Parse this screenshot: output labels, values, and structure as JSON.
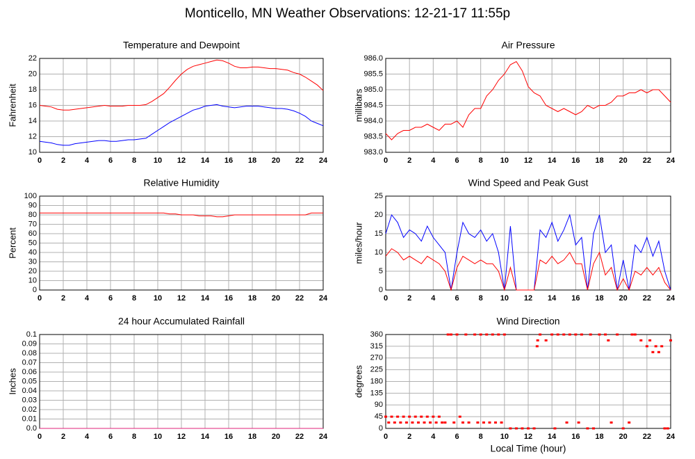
{
  "title": "Monticello, MN Weather Observations: 12-21-17 11:55p",
  "chart_data": [
    {
      "type": "line",
      "title": "Temperature and Dewpoint",
      "y_label": "Fahrenheit",
      "x": [
        0,
        0.5,
        1,
        1.5,
        2,
        2.5,
        3,
        3.5,
        4,
        4.5,
        5,
        5.5,
        6,
        6.5,
        7,
        7.5,
        8,
        8.5,
        9,
        9.5,
        10,
        10.5,
        11,
        11.5,
        12,
        12.5,
        13,
        13.5,
        14,
        14.5,
        15,
        15.5,
        16,
        16.5,
        17,
        17.5,
        18,
        18.5,
        19,
        19.5,
        20,
        20.5,
        21,
        21.5,
        22,
        22.5,
        23,
        23.5,
        24
      ],
      "series": [
        {
          "color": "#ff0000",
          "values": [
            16,
            15.9,
            15.8,
            15.5,
            15.4,
            15.4,
            15.5,
            15.6,
            15.7,
            15.8,
            15.9,
            16,
            15.9,
            15.9,
            15.9,
            16,
            16,
            16,
            16.1,
            16.5,
            17,
            17.5,
            18.3,
            19.2,
            20,
            20.6,
            21,
            21.2,
            21.4,
            21.6,
            21.8,
            21.7,
            21.4,
            21,
            20.8,
            20.8,
            20.9,
            20.9,
            20.8,
            20.7,
            20.7,
            20.6,
            20.5,
            20.2,
            20,
            19.6,
            19.1,
            18.6,
            17.9
          ]
        },
        {
          "color": "#0000ff",
          "values": [
            11.4,
            11.3,
            11.2,
            11,
            10.9,
            10.9,
            11.1,
            11.2,
            11.3,
            11.4,
            11.5,
            11.5,
            11.4,
            11.4,
            11.5,
            11.6,
            11.6,
            11.7,
            11.8,
            12.3,
            12.8,
            13.3,
            13.8,
            14.2,
            14.6,
            15,
            15.4,
            15.6,
            15.9,
            16,
            16.1,
            15.9,
            15.8,
            15.7,
            15.8,
            15.9,
            15.9,
            15.9,
            15.8,
            15.7,
            15.6,
            15.6,
            15.5,
            15.3,
            15,
            14.6,
            14,
            13.7,
            13.4
          ]
        }
      ],
      "xlim": [
        0,
        24
      ],
      "xticks": [
        0,
        2,
        4,
        6,
        8,
        10,
        12,
        14,
        16,
        18,
        20,
        22,
        24
      ],
      "ylim": [
        10,
        22
      ],
      "yticks": [
        10,
        12,
        14,
        16,
        18,
        20,
        22
      ],
      "grid": true
    },
    {
      "type": "line",
      "title": "Air Pressure",
      "y_label": "millibars",
      "x": [
        0,
        0.5,
        1,
        1.5,
        2,
        2.5,
        3,
        3.5,
        4,
        4.5,
        5,
        5.5,
        6,
        6.5,
        7,
        7.5,
        8,
        8.5,
        9,
        9.5,
        10,
        10.5,
        11,
        11.5,
        12,
        12.5,
        13,
        13.5,
        14,
        14.5,
        15,
        15.5,
        16,
        16.5,
        17,
        17.5,
        18,
        18.5,
        19,
        19.5,
        20,
        20.5,
        21,
        21.5,
        22,
        22.5,
        23,
        23.5,
        24
      ],
      "series": [
        {
          "color": "#ff0000",
          "values": [
            983.6,
            983.4,
            983.6,
            983.7,
            983.7,
            983.8,
            983.8,
            983.9,
            983.8,
            983.7,
            983.9,
            983.9,
            984,
            983.8,
            984.2,
            984.4,
            984.4,
            984.8,
            985,
            985.3,
            985.5,
            985.8,
            985.9,
            985.6,
            985.1,
            984.9,
            984.8,
            984.5,
            984.4,
            984.3,
            984.4,
            984.3,
            984.2,
            984.3,
            984.5,
            984.4,
            984.5,
            984.5,
            984.6,
            984.8,
            984.8,
            984.9,
            984.9,
            985,
            984.9,
            985,
            985,
            984.8,
            984.6
          ]
        }
      ],
      "xlim": [
        0,
        24
      ],
      "xticks": [
        0,
        2,
        4,
        6,
        8,
        10,
        12,
        14,
        16,
        18,
        20,
        22,
        24
      ],
      "ylim": [
        983,
        986
      ],
      "yticks": [
        {
          "value": 983,
          "label": "983.0"
        },
        983.5,
        {
          "value": 984,
          "label": "984.0"
        },
        984.5,
        {
          "value": 985,
          "label": "985.0"
        },
        985.5,
        {
          "value": 986,
          "label": "986.0"
        }
      ],
      "grid": true
    },
    {
      "type": "line",
      "title": "Relative Humidity",
      "y_label": "Percent",
      "x": [
        0,
        0.5,
        1,
        1.5,
        2,
        2.5,
        3,
        3.5,
        4,
        4.5,
        5,
        5.5,
        6,
        6.5,
        7,
        7.5,
        8,
        8.5,
        9,
        9.5,
        10,
        10.5,
        11,
        11.5,
        12,
        12.5,
        13,
        13.5,
        14,
        14.5,
        15,
        15.5,
        16,
        16.5,
        17,
        17.5,
        18,
        18.5,
        19,
        19.5,
        20,
        20.5,
        21,
        21.5,
        22,
        22.5,
        23,
        23.5,
        24
      ],
      "series": [
        {
          "color": "#ff0000",
          "values": [
            82,
            82,
            82,
            82,
            82,
            82,
            82,
            82,
            82,
            82,
            82,
            82,
            82,
            82,
            82,
            82,
            82,
            82,
            82,
            82,
            82,
            82,
            81,
            81,
            80,
            80,
            80,
            79,
            79,
            79,
            78,
            78,
            79,
            80,
            80,
            80,
            80,
            80,
            80,
            80,
            80,
            80,
            80,
            80,
            80,
            80,
            82,
            82,
            82
          ]
        }
      ],
      "xlim": [
        0,
        24
      ],
      "xticks": [
        0,
        2,
        4,
        6,
        8,
        10,
        12,
        14,
        16,
        18,
        20,
        22,
        24
      ],
      "ylim": [
        0,
        100
      ],
      "yticks": [
        0,
        10,
        20,
        30,
        40,
        50,
        60,
        70,
        80,
        90,
        100
      ],
      "grid": true
    },
    {
      "type": "line",
      "title": "Wind Speed and Peak Gust",
      "y_label": "miles/hour",
      "x": [
        0,
        0.5,
        1,
        1.5,
        2,
        2.5,
        3,
        3.5,
        4,
        4.5,
        5,
        5.5,
        6,
        6.5,
        7,
        7.5,
        8,
        8.5,
        9,
        9.5,
        10,
        10.5,
        11,
        11.5,
        12,
        12.5,
        13,
        13.5,
        14,
        14.5,
        15,
        15.5,
        16,
        16.5,
        17,
        17.5,
        18,
        18.5,
        19,
        19.5,
        20,
        20.5,
        21,
        21.5,
        22,
        22.5,
        23,
        23.5,
        24
      ],
      "series": [
        {
          "color": "#0000ff",
          "values": [
            15,
            20,
            18,
            14,
            16,
            15,
            13,
            17,
            14,
            12,
            10,
            0,
            10,
            18,
            15,
            14,
            16,
            13,
            15,
            10,
            0,
            17,
            0,
            0,
            0,
            0,
            16,
            14,
            18,
            13,
            16,
            20,
            12,
            14,
            0,
            15,
            20,
            10,
            12,
            0,
            8,
            0,
            12,
            10,
            14,
            9,
            13,
            5,
            0
          ]
        },
        {
          "color": "#ff0000",
          "values": [
            9,
            11,
            10,
            8,
            9,
            8,
            7,
            9,
            8,
            7,
            5,
            0,
            6,
            9,
            8,
            7,
            8,
            7,
            7,
            5,
            0,
            6,
            0,
            0,
            0,
            0,
            8,
            7,
            9,
            7,
            8,
            10,
            7,
            7,
            0,
            7,
            10,
            4,
            6,
            0,
            3,
            0,
            5,
            4,
            6,
            4,
            6,
            2,
            0
          ]
        }
      ],
      "xlim": [
        0,
        24
      ],
      "xticks": [
        0,
        2,
        4,
        6,
        8,
        10,
        12,
        14,
        16,
        18,
        20,
        22,
        24
      ],
      "ylim": [
        0,
        25
      ],
      "yticks": [
        0,
        5,
        10,
        15,
        20,
        25
      ],
      "grid": true
    },
    {
      "type": "line",
      "title": "24 hour Accumulated Rainfall",
      "y_label": "Inches",
      "x": [
        0,
        24
      ],
      "series": [
        {
          "color": "#e0207a",
          "values": [
            0,
            0
          ]
        }
      ],
      "xlim": [
        0,
        24
      ],
      "xticks": [
        0,
        2,
        4,
        6,
        8,
        10,
        12,
        14,
        16,
        18,
        20,
        22,
        24
      ],
      "ylim": [
        0,
        0.1
      ],
      "yticks": [
        {
          "value": 0,
          "label": "0.0"
        },
        0.01,
        0.02,
        0.03,
        0.04,
        0.05,
        0.06,
        0.07,
        0.08,
        0.09,
        0.1
      ],
      "grid": true
    },
    {
      "type": "scatter",
      "title": "Wind Direction",
      "y_label": "degrees",
      "x_label": "Local Time (hour)",
      "x": [
        0,
        0.25,
        0.5,
        0.75,
        1,
        1.25,
        1.5,
        1.75,
        2,
        2.25,
        2.5,
        2.75,
        3,
        3.25,
        3.5,
        3.75,
        4,
        4.25,
        4.5,
        4.75,
        5,
        5.25,
        5.5,
        5.75,
        6,
        6.25,
        6.5,
        6.75,
        7,
        7.5,
        7.75,
        8,
        8.25,
        8.5,
        8.75,
        9,
        9.25,
        9.5,
        9.75,
        10,
        10.5,
        11,
        11.5,
        12,
        12.5,
        12.75,
        12.8,
        13,
        13.5,
        14,
        14.25,
        14.5,
        15,
        15.25,
        15.5,
        16,
        16.25,
        16.5,
        17,
        17.25,
        17.5,
        18,
        18.5,
        18.75,
        19,
        19.5,
        20,
        20.5,
        20.75,
        21,
        21.5,
        22,
        22.25,
        22.5,
        22.75,
        23,
        23.25,
        23.5,
        23.75,
        24
      ],
      "series": [
        {
          "color": "#ff0000",
          "values": [
            45,
            22.5,
            45,
            22.5,
            45,
            22.5,
            45,
            22.5,
            45,
            22.5,
            45,
            22.5,
            45,
            22.5,
            45,
            22.5,
            45,
            22.5,
            45,
            22.5,
            22.5,
            360,
            360,
            22.5,
            360,
            45,
            22.5,
            360,
            22.5,
            360,
            22.5,
            360,
            22.5,
            360,
            22.5,
            360,
            22.5,
            360,
            22.5,
            360,
            0,
            0,
            0,
            0,
            0,
            315,
            337.5,
            360,
            337.5,
            360,
            0,
            360,
            360,
            22.5,
            360,
            360,
            22.5,
            360,
            0,
            360,
            0,
            360,
            360,
            337.5,
            22.5,
            360,
            0,
            22.5,
            360,
            360,
            337.5,
            315,
            337.5,
            292.5,
            315,
            292.5,
            315,
            0,
            0,
            337.5
          ]
        }
      ],
      "xlim": [
        0,
        24
      ],
      "xticks": [
        0,
        2,
        4,
        6,
        8,
        10,
        12,
        14,
        16,
        18,
        20,
        22,
        24
      ],
      "ylim": [
        0,
        360
      ],
      "yticks": [
        0,
        45,
        90,
        135,
        180,
        225,
        270,
        315,
        360
      ],
      "grid": true
    }
  ]
}
